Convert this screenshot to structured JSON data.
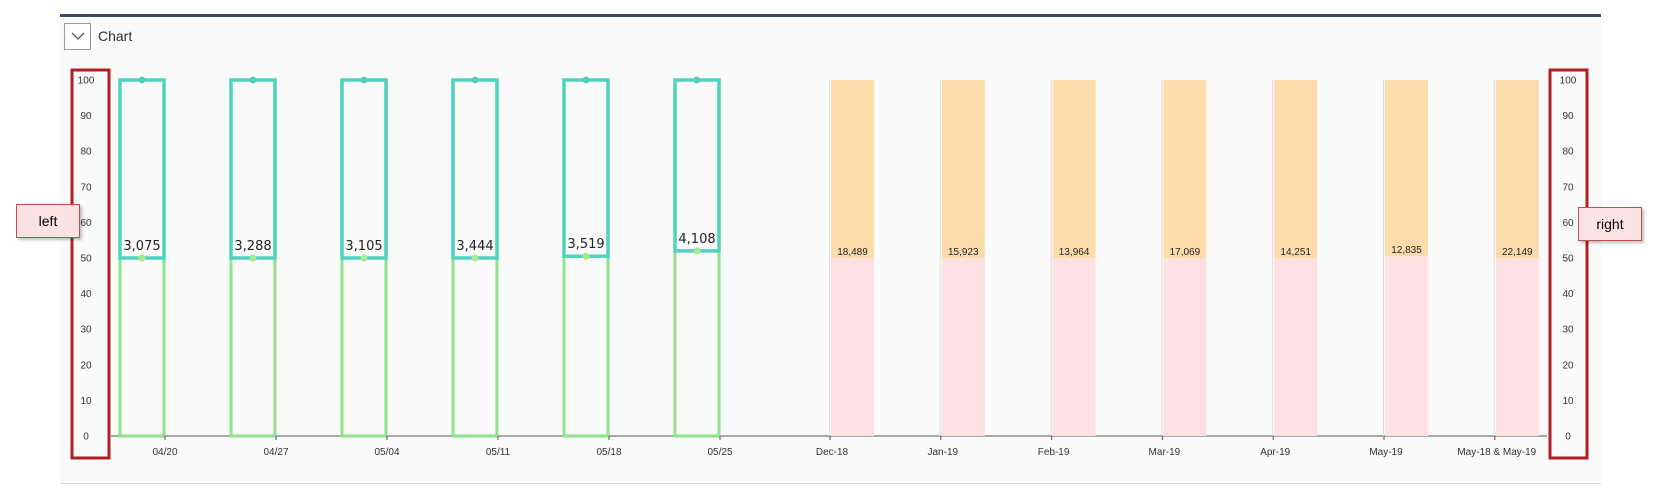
{
  "panel": {
    "title": "Chart",
    "toggle_icon": "chevron-down-icon"
  },
  "annotations": {
    "left": "left",
    "right": "right",
    "box_color": "#b01f24"
  },
  "colors": {
    "outline_bar": "#4fd3c0",
    "outline_bar_lower": "#8fe38a",
    "marker_dot": "#4fd3c0",
    "marker_dot_lower": "#a6e98f",
    "upper_fill": "#fddbab",
    "lower_fill": "#fde1e0",
    "axis": "#555555",
    "gridline": "#dddddd"
  },
  "chart_data": {
    "type": "bar",
    "stacked": true,
    "ylim": [
      0,
      100
    ],
    "yticks": [
      0,
      10,
      20,
      30,
      40,
      50,
      60,
      70,
      80,
      90,
      100
    ],
    "left_axis_ticks": [
      0,
      10,
      20,
      30,
      40,
      50,
      60,
      70,
      80,
      90,
      100
    ],
    "right_axis_ticks": [
      0,
      10,
      20,
      30,
      40,
      50,
      60,
      70,
      80,
      90,
      100
    ],
    "grid": false,
    "weekly": {
      "style": "outline",
      "categories": [
        "04/20",
        "04/27",
        "05/04",
        "05/11",
        "05/18",
        "05/25"
      ],
      "series": [
        {
          "values": [
            50,
            50,
            50,
            50,
            50.5,
            52
          ]
        },
        {
          "values": [
            50,
            50,
            50,
            50,
            49.5,
            48
          ]
        }
      ],
      "labels": [
        "3,075",
        "3,288",
        "3,105",
        "3,444",
        "3,519",
        "4,108"
      ]
    },
    "monthly": {
      "style": "filled",
      "categories": [
        "Dec-18",
        "Jan-19",
        "Feb-19",
        "Mar-19",
        "Apr-19",
        "May-19",
        "May-18 & May-19"
      ],
      "series": [
        {
          "values": [
            50,
            50,
            50,
            50,
            50,
            50.5,
            50
          ]
        },
        {
          "values": [
            50,
            50,
            50,
            50,
            50,
            49.5,
            50
          ]
        }
      ],
      "labels": [
        "18,489",
        "15,923",
        "13,964",
        "17,069",
        "14,251",
        "12,835",
        "22,149"
      ]
    }
  }
}
